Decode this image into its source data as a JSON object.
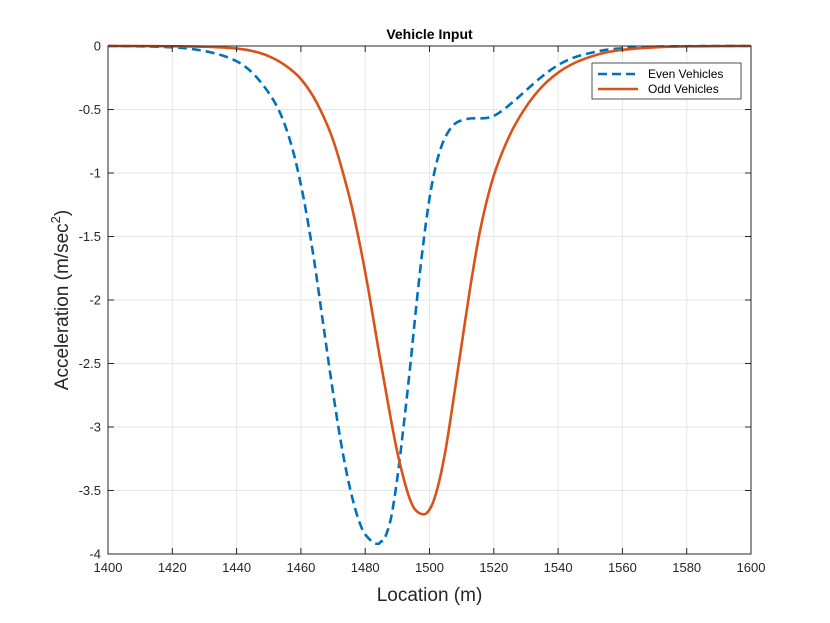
{
  "chart_data": {
    "type": "line",
    "title": "Vehicle Input",
    "xlabel": "Location (m)",
    "ylabel_main": "Acceleration (m/sec",
    "ylabel_sup": "2",
    "ylabel_end": ")",
    "xlim": [
      1400,
      1600
    ],
    "ylim": [
      -4,
      0
    ],
    "xticks": [
      1400,
      1420,
      1440,
      1460,
      1480,
      1500,
      1520,
      1540,
      1560,
      1580,
      1600
    ],
    "yticks": [
      0,
      -0.5,
      -1,
      -1.5,
      -2,
      -2.5,
      -3,
      -3.5,
      -4
    ],
    "xtick_labels": [
      "1400",
      "1420",
      "1440",
      "1460",
      "1480",
      "1500",
      "1520",
      "1540",
      "1560",
      "1580",
      "1600"
    ],
    "ytick_labels": [
      "0",
      "-0.5",
      "-1",
      "-1.5",
      "-2",
      "-2.5",
      "-3",
      "-3.5",
      "-4"
    ],
    "grid": true,
    "legend_position": "top-right",
    "series": [
      {
        "name": "Even Vehicles",
        "color": "#0072BD",
        "style": "dashed",
        "x": [
          1400,
          1410,
          1420,
          1425,
          1430,
          1435,
          1440,
          1444,
          1448,
          1452,
          1455,
          1458,
          1461,
          1464,
          1467,
          1470,
          1473,
          1476,
          1479,
          1482,
          1484,
          1485,
          1486,
          1488,
          1490,
          1492,
          1494,
          1496,
          1498,
          1500,
          1502,
          1504,
          1506,
          1508,
          1510,
          1513,
          1516,
          1519,
          1522,
          1526,
          1530,
          1535,
          1540,
          1545,
          1550,
          1555,
          1560,
          1565,
          1570,
          1580,
          1590,
          1600
        ],
        "y": [
          0,
          -0.003,
          -0.01,
          -0.02,
          -0.04,
          -0.07,
          -0.12,
          -0.19,
          -0.3,
          -0.45,
          -0.62,
          -0.87,
          -1.22,
          -1.67,
          -2.2,
          -2.73,
          -3.2,
          -3.56,
          -3.8,
          -3.9,
          -3.92,
          -3.9,
          -3.88,
          -3.72,
          -3.4,
          -2.98,
          -2.52,
          -2.02,
          -1.57,
          -1.2,
          -0.94,
          -0.77,
          -0.67,
          -0.61,
          -0.585,
          -0.57,
          -0.57,
          -0.56,
          -0.52,
          -0.44,
          -0.35,
          -0.24,
          -0.15,
          -0.09,
          -0.055,
          -0.03,
          -0.018,
          -0.01,
          -0.005,
          -0.002,
          0,
          0
        ]
      },
      {
        "name": "Odd Vehicles",
        "color": "#D95319",
        "style": "solid",
        "x": [
          1400,
          1420,
          1430,
          1440,
          1445,
          1450,
          1455,
          1460,
          1465,
          1470,
          1475,
          1478,
          1481,
          1484,
          1487,
          1490,
          1493,
          1495,
          1497,
          1499,
          1501,
          1503,
          1505,
          1507,
          1510,
          1513,
          1516,
          1520,
          1525,
          1530,
          1535,
          1540,
          1545,
          1550,
          1555,
          1560,
          1570,
          1580,
          1590,
          1600
        ],
        "y": [
          0,
          -0.002,
          -0.006,
          -0.02,
          -0.04,
          -0.08,
          -0.15,
          -0.26,
          -0.45,
          -0.74,
          -1.18,
          -1.52,
          -1.92,
          -2.37,
          -2.8,
          -3.2,
          -3.5,
          -3.63,
          -3.68,
          -3.68,
          -3.6,
          -3.43,
          -3.18,
          -2.86,
          -2.35,
          -1.85,
          -1.42,
          -1.02,
          -0.7,
          -0.48,
          -0.32,
          -0.21,
          -0.135,
          -0.085,
          -0.05,
          -0.03,
          -0.01,
          -0.003,
          -0.001,
          0
        ]
      }
    ]
  }
}
